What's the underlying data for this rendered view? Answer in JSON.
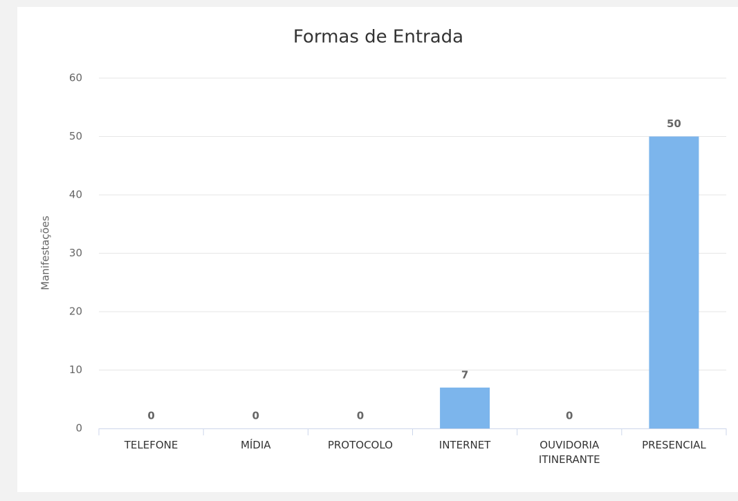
{
  "chart_data": {
    "type": "bar",
    "title": "Formas de Entrada",
    "y_label": "Manifestações",
    "categories": [
      "TELEFONE",
      "MÍDIA",
      "PROTOCOLO",
      "INTERNET",
      "OUVIDORIA ITINERANTE",
      "PRESENCIAL"
    ],
    "values": [
      0,
      0,
      0,
      7,
      0,
      50
    ],
    "color": "#7cb5ec",
    "ylim": [
      0,
      60
    ],
    "yticks": [
      0,
      10,
      20,
      30,
      40,
      50,
      60
    ],
    "grid": true
  }
}
